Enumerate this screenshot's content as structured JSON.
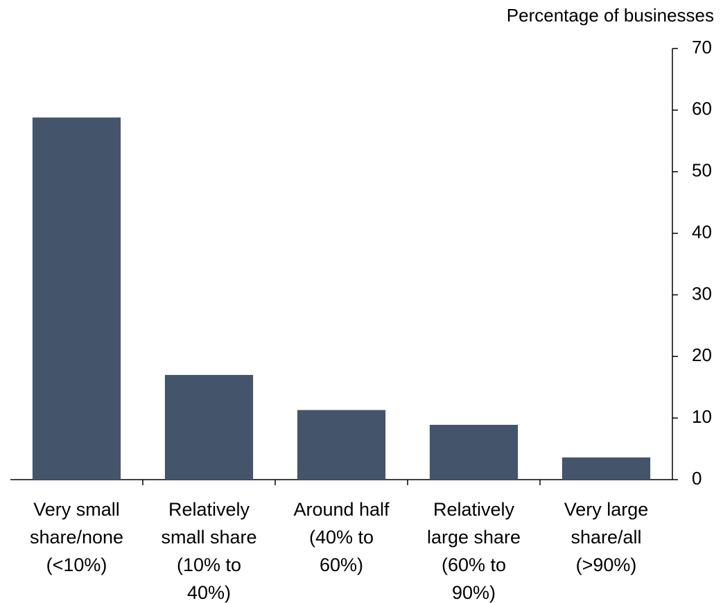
{
  "chart_data": {
    "type": "bar",
    "y_axis_label": "Percentage of businesses",
    "categories": [
      "Very small\nshare/none\n(<10%)",
      "Relatively\nsmall share\n(10% to\n40%)",
      "Around half\n(40% to\n60%)",
      "Relatively\nlarge share\n(60% to\n90%)",
      "Very large\nshare/all\n(>90%)"
    ],
    "values": [
      58.8,
      17.0,
      11.3,
      8.9,
      3.6
    ],
    "color": "#44546a",
    "ylim": [
      0,
      70
    ],
    "yticks": [
      0,
      10,
      20,
      30,
      40,
      50,
      60,
      70
    ],
    "y_axis_side": "right",
    "grid": false
  }
}
